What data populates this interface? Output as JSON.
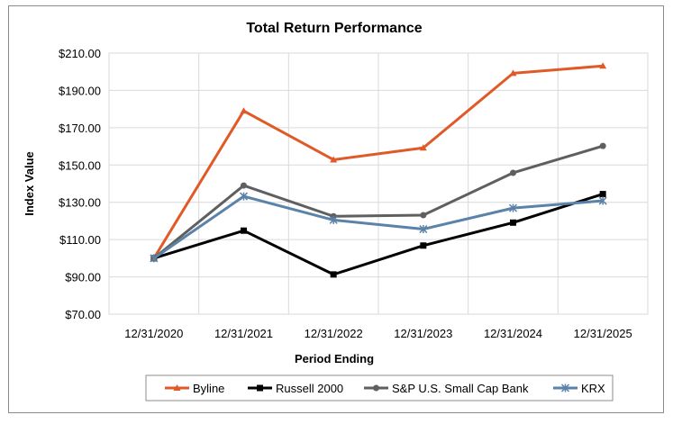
{
  "chart_data": {
    "type": "line",
    "title": "Total Return Performance",
    "xlabel": "Period Ending",
    "ylabel": "Index Value",
    "categories": [
      "12/31/2020",
      "12/31/2021",
      "12/31/2022",
      "12/31/2023",
      "12/31/2024",
      "12/31/2025"
    ],
    "ylim": [
      70,
      210
    ],
    "yticks": [
      70,
      90,
      110,
      130,
      150,
      170,
      190,
      210
    ],
    "ytick_labels": [
      "$70.00",
      "$90.00",
      "$110.00",
      "$130.00",
      "$150.00",
      "$170.00",
      "$190.00",
      "$210.00"
    ],
    "grid": true,
    "legend_position": "bottom",
    "series": [
      {
        "name": "Byline",
        "color": "#e05a27",
        "marker": "triangle",
        "values": [
          100.0,
          179.0,
          152.8,
          159.2,
          199.2,
          203.1
        ]
      },
      {
        "name": "Russell 2000",
        "color": "#000000",
        "marker": "square",
        "values": [
          100.0,
          114.8,
          91.3,
          106.8,
          119.1,
          134.4
        ]
      },
      {
        "name": "S&P U.S. Small Cap Bank",
        "color": "#5f5f5f",
        "marker": "circle",
        "values": [
          100.0,
          139.0,
          122.5,
          123.1,
          145.8,
          160.2
        ]
      },
      {
        "name": "KRX",
        "color": "#5b82a8",
        "marker": "asterisk",
        "values": [
          100.0,
          133.2,
          120.5,
          115.6,
          126.9,
          130.8
        ]
      }
    ]
  }
}
